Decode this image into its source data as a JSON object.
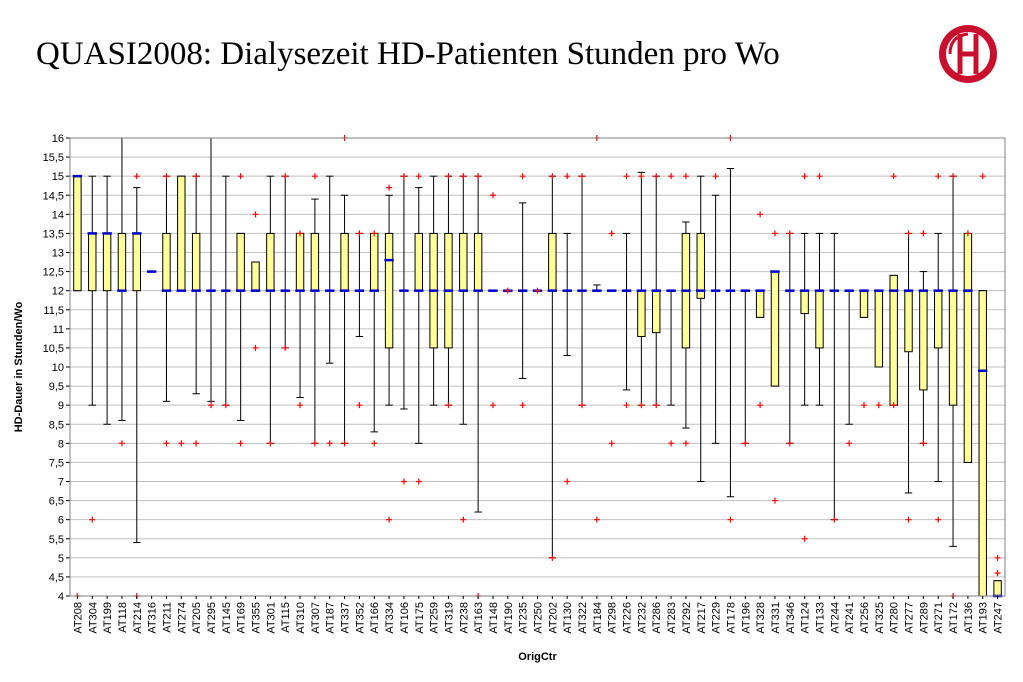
{
  "title": "QUASI2008: Dialysezeit HD-Patienten Stunden pro Wo",
  "logo": {
    "icon": "clinic-seal-logo",
    "colors": {
      "ring": "#c8102e",
      "inner": "#ffffff"
    }
  },
  "colors": {
    "box": "#ffff99",
    "median": "#0000cc",
    "outlier": "#ff0000",
    "grid": "#c0c0c0"
  },
  "chart_data": {
    "type": "boxplot",
    "title": "",
    "xlabel": "OrigCtr",
    "ylabel": "HD-Dauer in Stunden/Wo",
    "ylim": [
      4,
      16
    ],
    "yticks": [
      "4",
      "4,5",
      "5",
      "5,5",
      "6",
      "6,5",
      "7",
      "7,5",
      "8",
      "8,5",
      "9",
      "9,5",
      "10",
      "10,5",
      "11",
      "11,5",
      "12",
      "12,5",
      "13",
      "13,5",
      "14",
      "14,5",
      "15",
      "15,5",
      "16"
    ],
    "grid": "horizontal",
    "categories": [
      "AT208",
      "AT304",
      "AT199",
      "AT118",
      "AT214",
      "AT316",
      "AT211",
      "AT274",
      "AT205",
      "AT295",
      "AT145",
      "AT169",
      "AT355",
      "AT301",
      "AT115",
      "AT310",
      "AT307",
      "AT187",
      "AT337",
      "AT352",
      "AT166",
      "AT334",
      "AT106",
      "AT175",
      "AT259",
      "AT319",
      "AT238",
      "AT163",
      "AT148",
      "AT190",
      "AT235",
      "AT250",
      "AT202",
      "AT130",
      "AT322",
      "AT184",
      "AT298",
      "AT226",
      "AT232",
      "AT286",
      "AT283",
      "AT292",
      "AT217",
      "AT229",
      "AT178",
      "AT196",
      "AT328",
      "AT331",
      "AT346",
      "AT124",
      "AT133",
      "AT244",
      "AT241",
      "AT256",
      "AT325",
      "AT280",
      "AT277",
      "AT289",
      "AT271",
      "AT172",
      "AT136",
      "AT193",
      "AT247"
    ],
    "boxes": [
      {
        "q1": 12,
        "median": 15,
        "q3": 15,
        "wlo": 12,
        "whi": 15,
        "outliers": [
          4
        ]
      },
      {
        "q1": 12,
        "median": 13.5,
        "q3": 13.5,
        "wlo": 9,
        "whi": 15,
        "outliers": [
          6
        ]
      },
      {
        "q1": 12,
        "median": 13.5,
        "q3": 13.5,
        "wlo": 8.5,
        "whi": 15,
        "outliers": []
      },
      {
        "q1": 12,
        "median": 12,
        "q3": 13.5,
        "wlo": 8.6,
        "whi": 16,
        "outliers": [
          8
        ]
      },
      {
        "q1": 12,
        "median": 13.5,
        "q3": 13.5,
        "wlo": 5.4,
        "whi": 14.7,
        "outliers": [
          15,
          4
        ]
      },
      {
        "q1": 12.5,
        "median": 12.5,
        "q3": 12.5,
        "wlo": 12.5,
        "whi": 12.5,
        "outliers": []
      },
      {
        "q1": 12,
        "median": 12,
        "q3": 13.5,
        "wlo": 9.1,
        "whi": 15,
        "outliers": [
          15,
          8
        ]
      },
      {
        "q1": 12,
        "median": 12,
        "q3": 15,
        "wlo": 12,
        "whi": 15,
        "outliers": [
          8
        ]
      },
      {
        "q1": 12,
        "median": 12,
        "q3": 13.5,
        "wlo": 9.3,
        "whi": 15,
        "outliers": [
          15,
          8
        ]
      },
      {
        "q1": 12,
        "median": 12,
        "q3": 12,
        "wlo": 9.1,
        "whi": 16,
        "outliers": [
          9
        ]
      },
      {
        "q1": 12,
        "median": 12,
        "q3": 12,
        "wlo": 9,
        "whi": 15,
        "outliers": [
          9
        ]
      },
      {
        "q1": 12,
        "median": 12,
        "q3": 13.5,
        "wlo": 8.6,
        "whi": 13.5,
        "outliers": [
          15,
          8
        ]
      },
      {
        "q1": 12,
        "median": 12,
        "q3": 12.75,
        "wlo": 12,
        "whi": 12.75,
        "outliers": [
          14,
          10.5
        ]
      },
      {
        "q1": 12,
        "median": 12,
        "q3": 13.5,
        "wlo": 8,
        "whi": 15,
        "outliers": [
          8
        ]
      },
      {
        "q1": 12,
        "median": 12,
        "q3": 12,
        "wlo": 10.5,
        "whi": 15,
        "outliers": [
          15,
          10.5
        ]
      },
      {
        "q1": 12,
        "median": 12,
        "q3": 13.5,
        "wlo": 9.2,
        "whi": 13.5,
        "outliers": [
          13.5,
          9
        ]
      },
      {
        "q1": 12,
        "median": 12,
        "q3": 13.5,
        "wlo": 8,
        "whi": 14.4,
        "outliers": [
          15,
          8
        ]
      },
      {
        "q1": 12,
        "median": 12,
        "q3": 12,
        "wlo": 10.1,
        "whi": 15,
        "outliers": [
          8
        ]
      },
      {
        "q1": 12,
        "median": 12,
        "q3": 13.5,
        "wlo": 8,
        "whi": 14.5,
        "outliers": [
          16,
          8
        ]
      },
      {
        "q1": 12,
        "median": 12,
        "q3": 12,
        "wlo": 10.8,
        "whi": 13.5,
        "outliers": [
          13.5,
          9
        ]
      },
      {
        "q1": 12,
        "median": 12,
        "q3": 13.5,
        "wlo": 8.3,
        "whi": 13.5,
        "outliers": [
          13.5,
          8
        ]
      },
      {
        "q1": 10.5,
        "median": 12.8,
        "q3": 13.5,
        "wlo": 9,
        "whi": 14.5,
        "outliers": [
          14.7,
          6
        ]
      },
      {
        "q1": 12,
        "median": 12,
        "q3": 12,
        "wlo": 8.9,
        "whi": 15,
        "outliers": [
          15,
          7
        ]
      },
      {
        "q1": 12,
        "median": 12,
        "q3": 13.5,
        "wlo": 8,
        "whi": 14.7,
        "outliers": [
          15,
          7
        ]
      },
      {
        "q1": 10.5,
        "median": 12,
        "q3": 13.5,
        "wlo": 9,
        "whi": 15,
        "outliers": []
      },
      {
        "q1": 10.5,
        "median": 12,
        "q3": 13.5,
        "wlo": 9,
        "whi": 15,
        "outliers": [
          15,
          9
        ]
      },
      {
        "q1": 12,
        "median": 12,
        "q3": 13.5,
        "wlo": 8.5,
        "whi": 15,
        "outliers": [
          15,
          6
        ]
      },
      {
        "q1": 12,
        "median": 12,
        "q3": 13.5,
        "wlo": 6.2,
        "whi": 15,
        "outliers": [
          15,
          4
        ]
      },
      {
        "q1": 12,
        "median": 12,
        "q3": 12,
        "wlo": 12,
        "whi": 12,
        "outliers": [
          14.5,
          9
        ]
      },
      {
        "q1": 12,
        "median": 12,
        "q3": 12,
        "wlo": 12,
        "whi": 12,
        "outliers": [
          12
        ]
      },
      {
        "q1": 12,
        "median": 12,
        "q3": 12,
        "wlo": 9.7,
        "whi": 14.3,
        "outliers": [
          15,
          9
        ]
      },
      {
        "q1": 12,
        "median": 12,
        "q3": 12,
        "wlo": 12,
        "whi": 12,
        "outliers": [
          12
        ]
      },
      {
        "q1": 12,
        "median": 12,
        "q3": 13.5,
        "wlo": 5,
        "whi": 15,
        "outliers": [
          15,
          5
        ]
      },
      {
        "q1": 12,
        "median": 12,
        "q3": 12,
        "wlo": 10.3,
        "whi": 13.5,
        "outliers": [
          15,
          7
        ]
      },
      {
        "q1": 12,
        "median": 12,
        "q3": 12,
        "wlo": 9,
        "whi": 15,
        "outliers": [
          15,
          9
        ]
      },
      {
        "q1": 12,
        "median": 12,
        "q3": 12,
        "wlo": 12,
        "whi": 12.15,
        "outliers": [
          16,
          6
        ]
      },
      {
        "q1": 12,
        "median": 12,
        "q3": 12,
        "wlo": 12,
        "whi": 12,
        "outliers": [
          13.5,
          8
        ]
      },
      {
        "q1": 12,
        "median": 12,
        "q3": 12,
        "wlo": 9.4,
        "whi": 13.5,
        "outliers": [
          15,
          9
        ]
      },
      {
        "q1": 10.8,
        "median": 12,
        "q3": 12,
        "wlo": 9,
        "whi": 15.1,
        "outliers": [
          15,
          9
        ]
      },
      {
        "q1": 10.9,
        "median": 12,
        "q3": 12,
        "wlo": 9,
        "whi": 15,
        "outliers": [
          15,
          9
        ]
      },
      {
        "q1": 12,
        "median": 12,
        "q3": 12,
        "wlo": 9,
        "whi": 12,
        "outliers": [
          15,
          8
        ]
      },
      {
        "q1": 10.5,
        "median": 12,
        "q3": 13.5,
        "wlo": 8.4,
        "whi": 13.8,
        "outliers": [
          15,
          8
        ]
      },
      {
        "q1": 11.8,
        "median": 12,
        "q3": 13.5,
        "wlo": 7,
        "whi": 15,
        "outliers": []
      },
      {
        "q1": 12,
        "median": 12,
        "q3": 12,
        "wlo": 8,
        "whi": 14.5,
        "outliers": [
          15
        ]
      },
      {
        "q1": 12,
        "median": 12,
        "q3": 12,
        "wlo": 6.6,
        "whi": 15.2,
        "outliers": [
          16,
          6
        ]
      },
      {
        "q1": 12,
        "median": 12,
        "q3": 12,
        "wlo": 8,
        "whi": 12,
        "outliers": [
          8
        ]
      },
      {
        "q1": 11.3,
        "median": 12,
        "q3": 12,
        "wlo": 11.3,
        "whi": 12,
        "outliers": [
          14,
          9
        ]
      },
      {
        "q1": 9.5,
        "median": 12.5,
        "q3": 12.5,
        "wlo": 9.5,
        "whi": 12.5,
        "outliers": [
          13.5,
          6.5
        ]
      },
      {
        "q1": 12,
        "median": 12,
        "q3": 12,
        "wlo": 8,
        "whi": 13.5,
        "outliers": [
          13.5,
          8
        ]
      },
      {
        "q1": 11.4,
        "median": 12,
        "q3": 12,
        "wlo": 9,
        "whi": 13.5,
        "outliers": [
          15,
          5.5
        ]
      },
      {
        "q1": 10.5,
        "median": 12,
        "q3": 12,
        "wlo": 9,
        "whi": 13.5,
        "outliers": [
          15
        ]
      },
      {
        "q1": 12,
        "median": 12,
        "q3": 12,
        "wlo": 6,
        "whi": 13.5,
        "outliers": [
          6
        ]
      },
      {
        "q1": 12,
        "median": 12,
        "q3": 12,
        "wlo": 8.5,
        "whi": 12,
        "outliers": [
          8
        ]
      },
      {
        "q1": 11.3,
        "median": 12,
        "q3": 12,
        "wlo": 11.3,
        "whi": 12,
        "outliers": [
          9
        ]
      },
      {
        "q1": 10,
        "median": 12,
        "q3": 12,
        "wlo": 10,
        "whi": 12,
        "outliers": [
          9
        ]
      },
      {
        "q1": 9,
        "median": 12,
        "q3": 12.4,
        "wlo": 9,
        "whi": 12.4,
        "outliers": [
          15,
          9
        ]
      },
      {
        "q1": 10.4,
        "median": 12,
        "q3": 12,
        "wlo": 6.7,
        "whi": 13.5,
        "outliers": [
          13.5,
          6
        ]
      },
      {
        "q1": 9.4,
        "median": 12,
        "q3": 12,
        "wlo": 8,
        "whi": 12.5,
        "outliers": [
          13.5,
          8
        ]
      },
      {
        "q1": 10.5,
        "median": 12,
        "q3": 12,
        "wlo": 7,
        "whi": 13.5,
        "outliers": [
          15,
          6
        ]
      },
      {
        "q1": 9,
        "median": 12,
        "q3": 12,
        "wlo": 5.3,
        "whi": 15,
        "outliers": [
          15,
          4
        ]
      },
      {
        "q1": 7.5,
        "median": 12,
        "q3": 13.5,
        "wlo": 7.5,
        "whi": 13.5,
        "outliers": [
          13.5
        ]
      },
      {
        "q1": 4,
        "median": 9.9,
        "q3": 12,
        "wlo": 4,
        "whi": 12,
        "outliers": [
          15
        ]
      },
      {
        "q1": 4,
        "median": 4,
        "q3": 4.4,
        "wlo": 4,
        "whi": 4.4,
        "outliers": [
          5,
          4.6
        ]
      }
    ]
  }
}
